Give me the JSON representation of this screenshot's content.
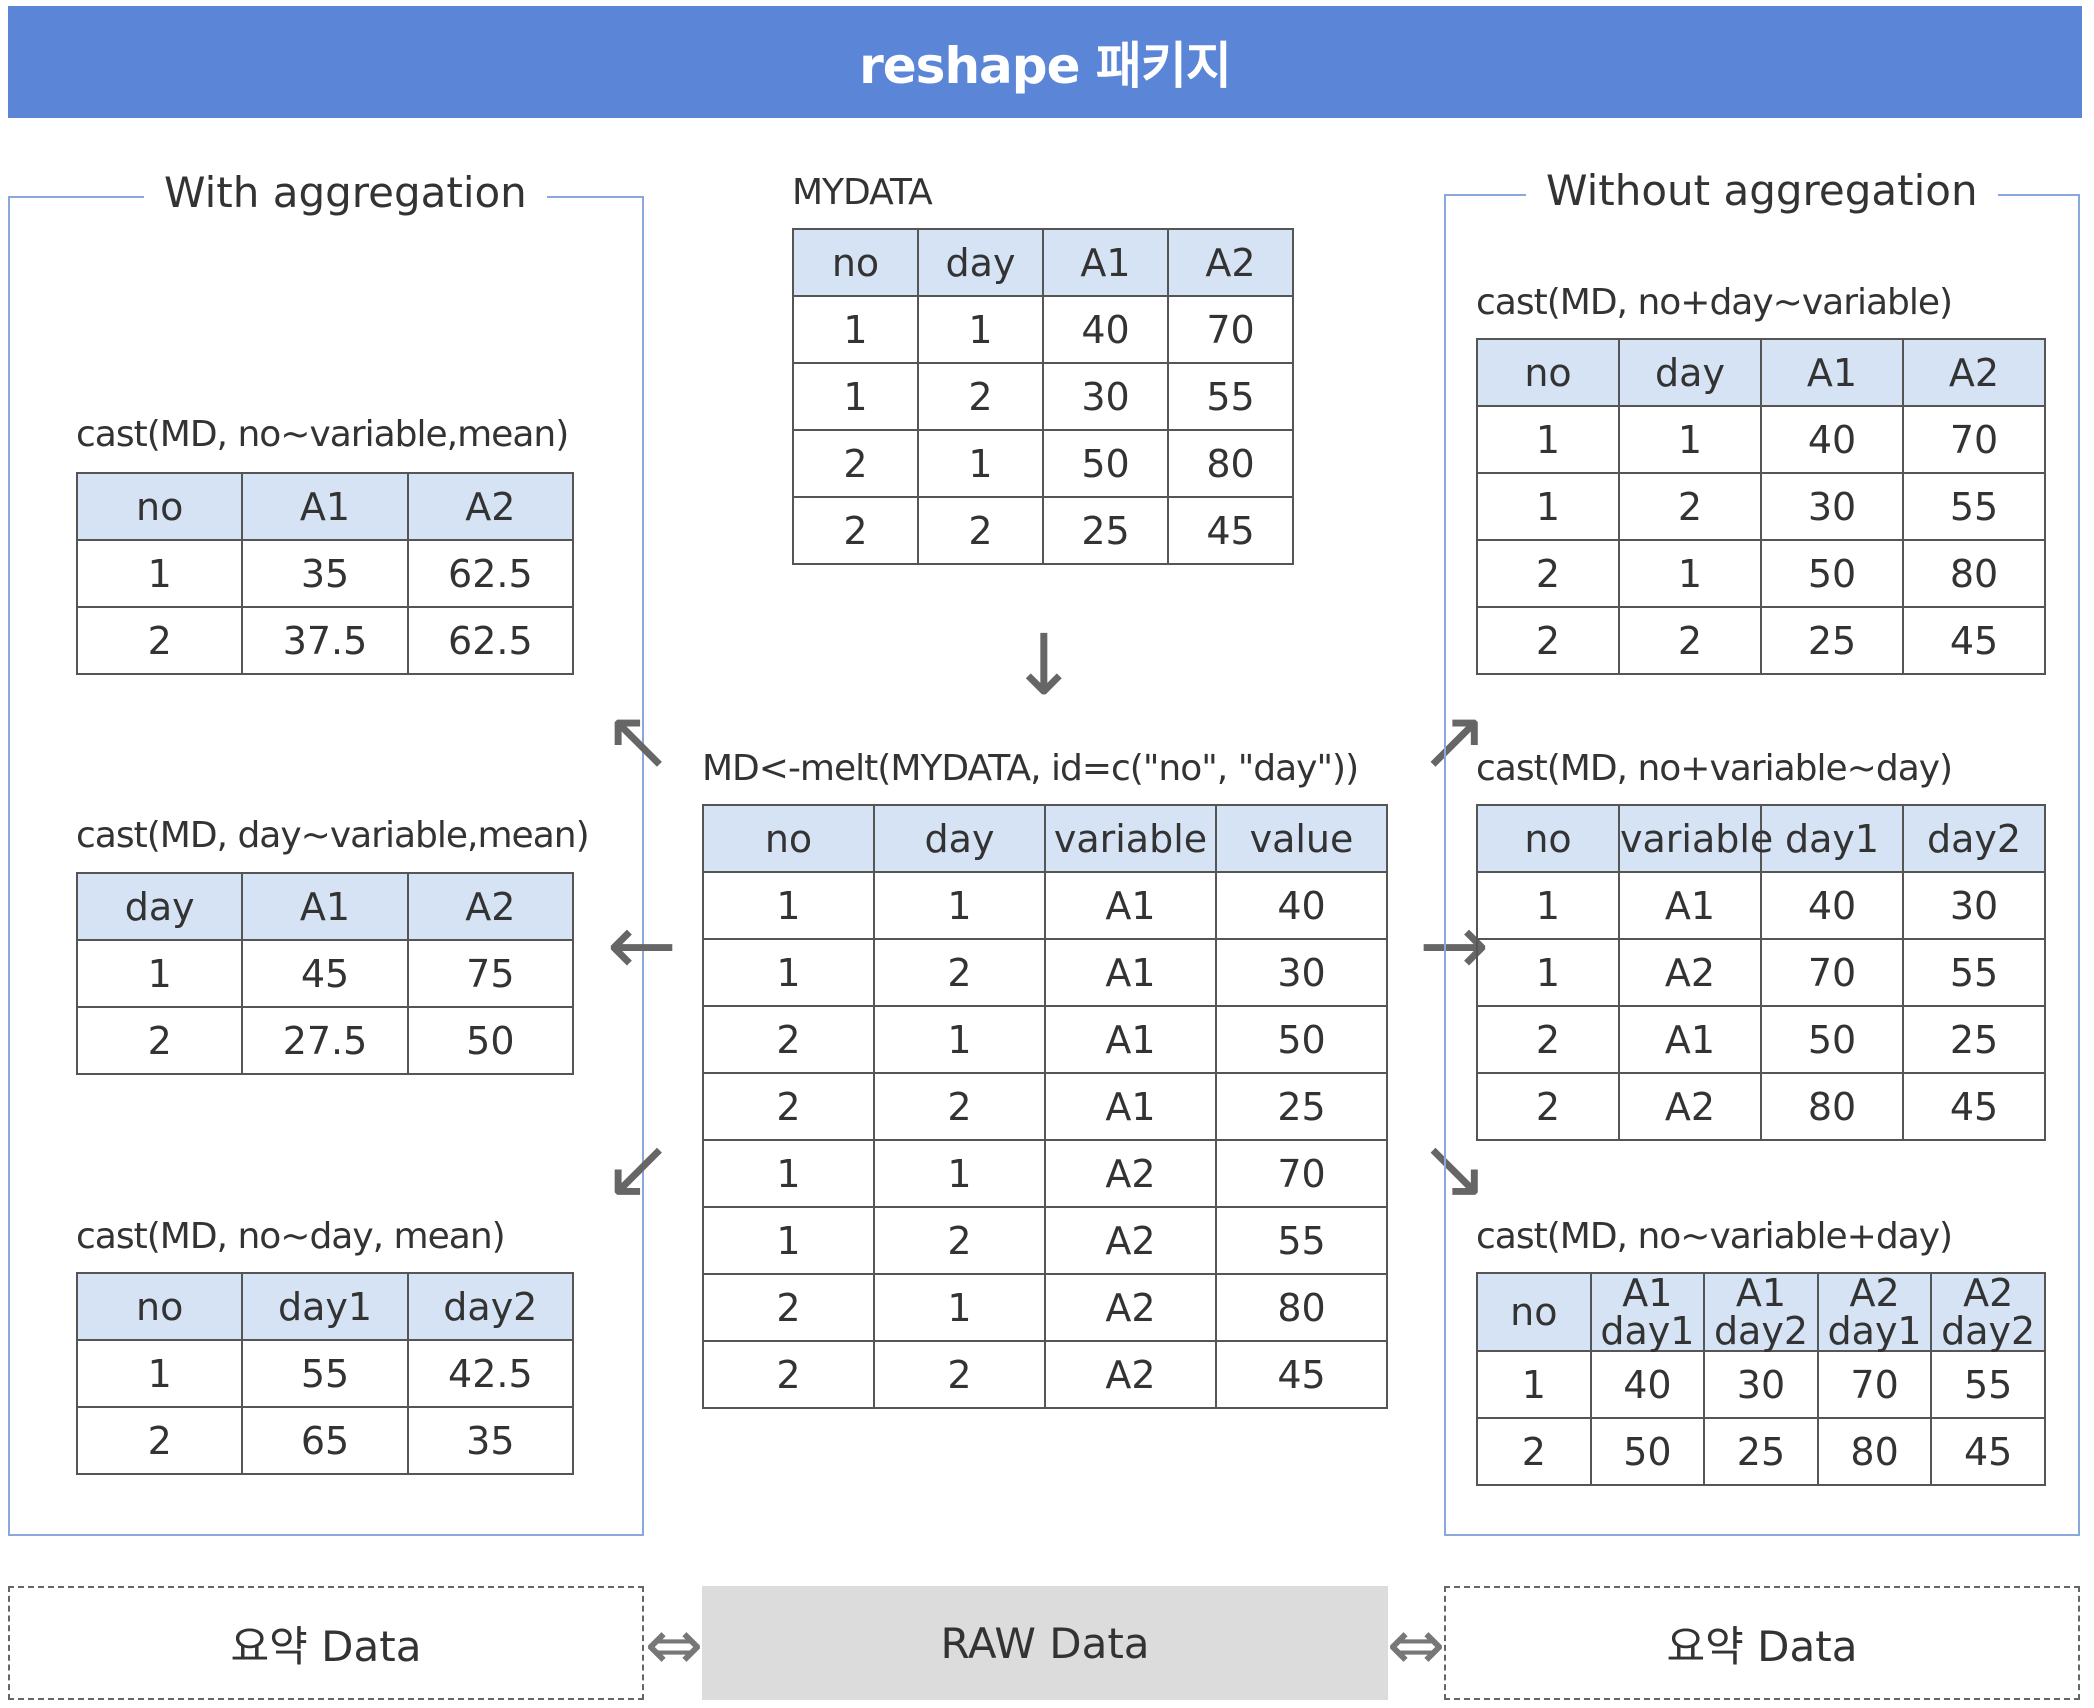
{
  "title": "reshape 패키지",
  "with_aggregation": {
    "title": "With aggregation",
    "tables": [
      {
        "label": "cast(MD, no~variable,mean)",
        "headers": [
          "no",
          "A1",
          "A2"
        ],
        "rows": [
          [
            "1",
            "35",
            "62.5"
          ],
          [
            "2",
            "37.5",
            "62.5"
          ]
        ]
      },
      {
        "label": "cast(MD,  day~variable,mean)",
        "headers": [
          "day",
          "A1",
          "A2"
        ],
        "rows": [
          [
            "1",
            "45",
            "75"
          ],
          [
            "2",
            "27.5",
            "50"
          ]
        ]
      },
      {
        "label": "cast(MD, no~day, mean)",
        "headers": [
          "no",
          "day1",
          "day2"
        ],
        "rows": [
          [
            "1",
            "55",
            "42.5"
          ],
          [
            "2",
            "65",
            "35"
          ]
        ]
      }
    ]
  },
  "mydata": {
    "label": "MYDATA",
    "headers": [
      "no",
      "day",
      "A1",
      "A2"
    ],
    "rows": [
      [
        "1",
        "1",
        "40",
        "70"
      ],
      [
        "1",
        "2",
        "30",
        "55"
      ],
      [
        "2",
        "1",
        "50",
        "80"
      ],
      [
        "2",
        "2",
        "25",
        "45"
      ]
    ]
  },
  "melt": {
    "label": "MD<-melt(MYDATA, id=c(\"no\", \"day\"))",
    "headers": [
      "no",
      "day",
      "variable",
      "value"
    ],
    "rows": [
      [
        "1",
        "1",
        "A1",
        "40"
      ],
      [
        "1",
        "2",
        "A1",
        "30"
      ],
      [
        "2",
        "1",
        "A1",
        "50"
      ],
      [
        "2",
        "2",
        "A1",
        "25"
      ],
      [
        "1",
        "1",
        "A2",
        "70"
      ],
      [
        "1",
        "2",
        "A2",
        "55"
      ],
      [
        "2",
        "1",
        "A2",
        "80"
      ],
      [
        "2",
        "2",
        "A2",
        "45"
      ]
    ]
  },
  "without_aggregation": {
    "title": "Without aggregation",
    "tables": [
      {
        "label": "cast(MD, no+day~variable)",
        "headers": [
          "no",
          "day",
          "A1",
          "A2"
        ],
        "rows": [
          [
            "1",
            "1",
            "40",
            "70"
          ],
          [
            "1",
            "2",
            "30",
            "55"
          ],
          [
            "2",
            "1",
            "50",
            "80"
          ],
          [
            "2",
            "2",
            "25",
            "45"
          ]
        ]
      },
      {
        "label": "cast(MD, no+variable~day)",
        "headers": [
          "no",
          "variable",
          "day1",
          "day2"
        ],
        "rows": [
          [
            "1",
            "A1",
            "40",
            "30"
          ],
          [
            "1",
            "A2",
            "70",
            "55"
          ],
          [
            "2",
            "A1",
            "50",
            "25"
          ],
          [
            "2",
            "A2",
            "80",
            "45"
          ]
        ]
      },
      {
        "label": "cast(MD, no~variable+day)",
        "headers": [
          "no",
          "A1 day1",
          "A1 day2",
          "A2 day1",
          "A2 day2"
        ],
        "rows": [
          [
            "1",
            "40",
            "30",
            "70",
            "55"
          ],
          [
            "2",
            "50",
            "25",
            "80",
            "45"
          ]
        ]
      }
    ]
  },
  "bottom": {
    "left": "요약 Data",
    "center": "RAW Data",
    "right": "요약 Data"
  }
}
